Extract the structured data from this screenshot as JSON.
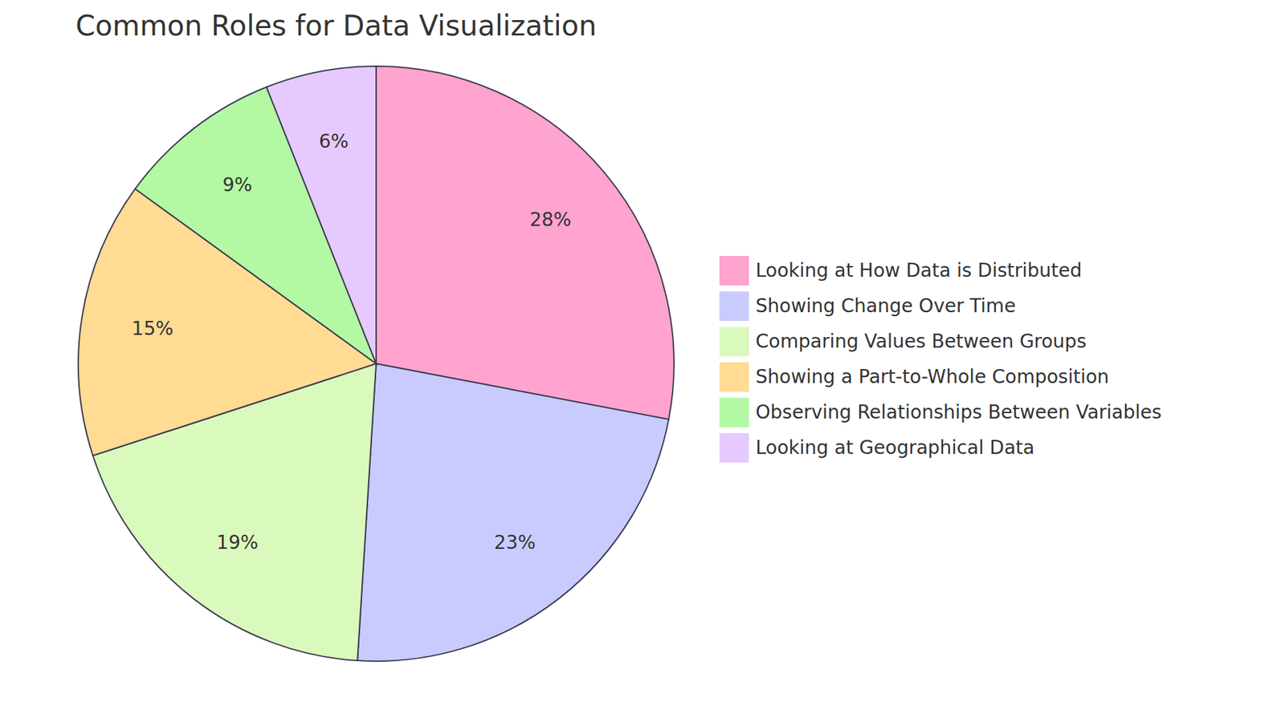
{
  "chart_data": {
    "type": "pie",
    "title": "Common Roles for Data Visualization",
    "categories": [
      "Looking at How Data is Distributed",
      "Showing Change Over Time",
      "Comparing Values Between Groups",
      "Showing a Part-to-Whole Composition",
      "Observing Relationships Between Variables",
      "Looking at Geographical Data"
    ],
    "values": [
      28,
      23,
      19,
      15,
      9,
      6
    ],
    "value_labels": [
      "28%",
      "23%",
      "19%",
      "15%",
      "9%",
      "6%"
    ],
    "colors": [
      "#FFA3CF",
      "#C9CBFF",
      "#DAF9BC",
      "#FFDB93",
      "#B3F9A3",
      "#E6CAFF"
    ],
    "legend": "right"
  }
}
